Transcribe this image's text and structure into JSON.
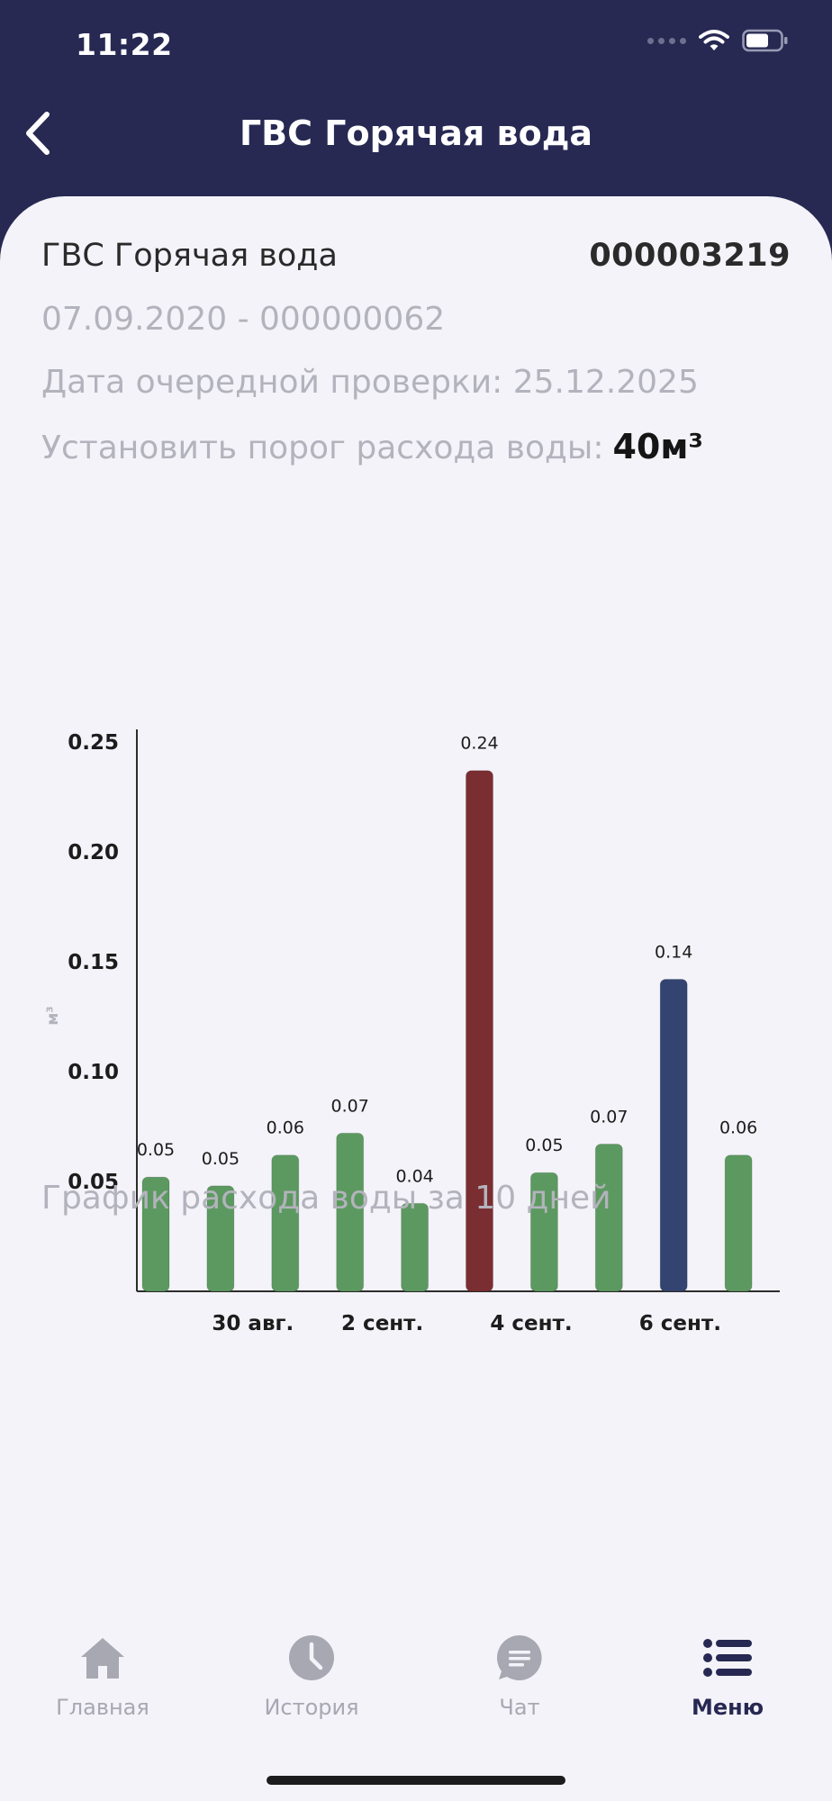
{
  "status_bar": {
    "time": "11:22"
  },
  "header": {
    "title": "ГВС Горячая вода"
  },
  "meter": {
    "name": "ГВС Горячая вода",
    "account": "000003219",
    "install_line": "07.09.2020 - 000000062",
    "next_check": "Дата очередной проверки: 25.12.2025",
    "threshold_label": "Установить порог расхода воды:",
    "threshold_value": "40м³"
  },
  "chart_data": {
    "type": "bar",
    "ylabel": "м³",
    "ylim": [
      0,
      0.25
    ],
    "yticks": [
      "0.05",
      "0.10",
      "0.15",
      "0.20",
      "0.25"
    ],
    "xtick_labels": [
      {
        "index": 1.5,
        "label": "30 авг."
      },
      {
        "index": 3.5,
        "label": "2 сент."
      },
      {
        "index": 5.8,
        "label": "4 сент."
      },
      {
        "index": 8.1,
        "label": "6 сент."
      }
    ],
    "values": [
      0.052,
      0.048,
      0.062,
      0.072,
      0.04,
      0.237,
      0.054,
      0.067,
      0.142,
      0.062
    ],
    "value_labels": [
      "0.05",
      "0.05",
      "0.06",
      "0.07",
      "0.04",
      "0.24",
      "0.05",
      "0.07",
      "0.14",
      "0.06"
    ],
    "bar_colors": [
      "#5c9960",
      "#5c9960",
      "#5c9960",
      "#5c9960",
      "#5c9960",
      "#7a2e31",
      "#5c9960",
      "#5c9960",
      "#334470",
      "#5c9960"
    ],
    "caption": "График расхода воды за 10 дней"
  },
  "tabbar": {
    "items": [
      {
        "label": "Главная",
        "icon": "home-icon"
      },
      {
        "label": "История",
        "icon": "clock-icon"
      },
      {
        "label": "Чат",
        "icon": "chat-icon"
      },
      {
        "label": "Меню",
        "icon": "menu-icon"
      }
    ]
  }
}
